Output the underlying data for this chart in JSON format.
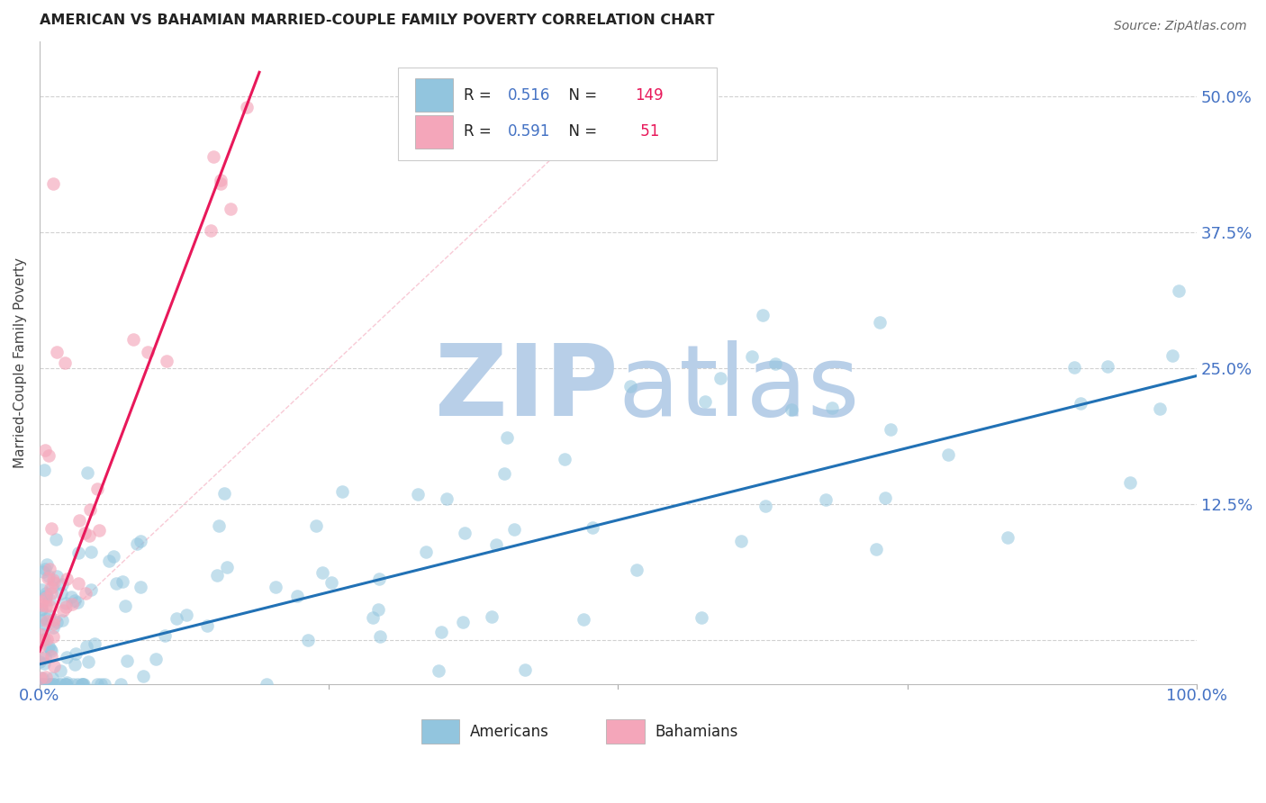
{
  "title": "AMERICAN VS BAHAMIAN MARRIED-COUPLE FAMILY POVERTY CORRELATION CHART",
  "source": "Source: ZipAtlas.com",
  "ylabel": "Married-Couple Family Poverty",
  "xlim": [
    0,
    1.0
  ],
  "ylim": [
    -0.04,
    0.55
  ],
  "ytick_positions": [
    0.0,
    0.125,
    0.25,
    0.375,
    0.5
  ],
  "ytick_labels": [
    "",
    "12.5%",
    "25.0%",
    "37.5%",
    "50.0%"
  ],
  "american_R": 0.516,
  "american_N": 149,
  "bahamian_R": 0.591,
  "bahamian_N": 51,
  "american_color": "#92c5de",
  "bahamian_color": "#f4a6ba",
  "american_trend_color": "#2171b5",
  "bahamian_trend_color": "#e8185a",
  "diag_color": "#f4a6ba",
  "american_trend_intercept": -0.022,
  "american_trend_slope": 0.265,
  "bahamian_trend_intercept": -0.01,
  "bahamian_trend_slope": 2.8,
  "bahamian_trend_x_end": 0.19,
  "watermark_zip": "ZIP",
  "watermark_atlas": "atlas",
  "watermark_color": "#b8cfe8",
  "background_color": "#ffffff",
  "grid_color": "#cccccc",
  "title_color": "#222222",
  "axis_label_color": "#444444",
  "tick_label_color": "#4472c4",
  "legend_text_color": "#222222",
  "legend_num_color": "#4472c4",
  "legend_N_color": "#e8185a"
}
